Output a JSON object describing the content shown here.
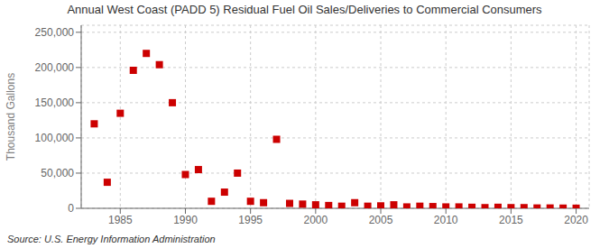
{
  "chart_data": {
    "type": "scatter",
    "title": "Annual West Coast (PADD 5) Residual Fuel Oil Sales/Deliveries to Commercial Consumers",
    "y_label": "Thousand Gallons",
    "annotations": [
      "Source: U.S. Energy Information Administration"
    ],
    "x": [
      1983,
      1984,
      1985,
      1986,
      1987,
      1988,
      1989,
      1990,
      1991,
      1992,
      1993,
      1994,
      1995,
      1996,
      1997,
      1998,
      1999,
      2000,
      2001,
      2002,
      2003,
      2004,
      2005,
      2006,
      2007,
      2008,
      2009,
      2010,
      2011,
      2012,
      2013,
      2014,
      2015,
      2016,
      2017,
      2018,
      2019,
      2020
    ],
    "values": [
      120000,
      37000,
      135000,
      196000,
      220000,
      204000,
      150000,
      48000,
      55000,
      10000,
      23000,
      50000,
      10000,
      8000,
      98000,
      7000,
      6000,
      5000,
      4000,
      3000,
      8000,
      3000,
      3500,
      5000,
      2000,
      3000,
      2500,
      2000,
      2000,
      1500,
      1000,
      1500,
      1000,
      1000,
      500,
      500,
      300,
      200
    ],
    "color": "#cc0000",
    "marker": "square",
    "xlim": [
      1982,
      2021
    ],
    "xticks": [
      1985,
      1990,
      1995,
      2000,
      2005,
      2010,
      2015,
      2020
    ],
    "ylim": [
      0,
      260000
    ],
    "yticks": [
      0,
      {
        "value": 50000,
        "label": "50,000"
      },
      {
        "value": 100000,
        "label": "100,000"
      },
      {
        "value": 150000,
        "label": "150,000"
      },
      {
        "value": 200000,
        "label": "200,000"
      },
      {
        "value": 250000,
        "label": "250,000"
      }
    ],
    "grid": true
  }
}
